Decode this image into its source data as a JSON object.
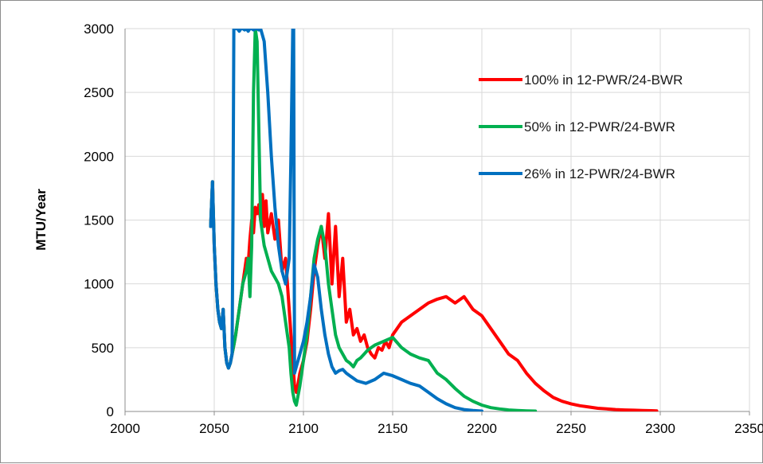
{
  "chart_data": {
    "type": "line",
    "title": "",
    "xlabel": "",
    "ylabel": "MTU/Year",
    "xlim": [
      2000,
      2350
    ],
    "ylim": [
      0,
      3000
    ],
    "x_ticks": [
      2000,
      2050,
      2100,
      2150,
      2200,
      2250,
      2300,
      2350
    ],
    "y_ticks": [
      0,
      500,
      1000,
      1500,
      2000,
      2500,
      3000
    ],
    "grid": true,
    "legend_position": "top-right",
    "series": [
      {
        "name": "100% in 12-PWR/24-BWR",
        "color": "#ff0000",
        "x": [
          2048,
          2049,
          2050,
          2051,
          2052,
          2053,
          2054,
          2055,
          2056,
          2057,
          2058,
          2059,
          2060,
          2061,
          2062,
          2063,
          2064,
          2065,
          2066,
          2067,
          2068,
          2069,
          2070,
          2071,
          2072,
          2073,
          2074,
          2075,
          2076,
          2077,
          2078,
          2079,
          2080,
          2082,
          2084,
          2086,
          2088,
          2090,
          2092,
          2093,
          2094,
          2095,
          2096,
          2097,
          2098,
          2100,
          2102,
          2104,
          2106,
          2108,
          2110,
          2112,
          2114,
          2116,
          2118,
          2120,
          2122,
          2124,
          2126,
          2128,
          2130,
          2132,
          2134,
          2136,
          2138,
          2140,
          2142,
          2144,
          2146,
          2148,
          2150,
          2155,
          2160,
          2165,
          2170,
          2175,
          2180,
          2185,
          2190,
          2195,
          2200,
          2205,
          2210,
          2215,
          2220,
          2225,
          2230,
          2235,
          2240,
          2245,
          2250,
          2255,
          2260,
          2265,
          2270,
          2275,
          2280,
          2285,
          2290,
          2295,
          2298
        ],
        "y": [
          1450,
          1800,
          1300,
          1000,
          800,
          700,
          650,
          800,
          500,
          380,
          340,
          380,
          450,
          520,
          600,
          700,
          800,
          900,
          1000,
          1100,
          1200,
          1150,
          1350,
          1500,
          1400,
          1600,
          1550,
          1620,
          1500,
          1700,
          1450,
          1650,
          1400,
          1550,
          1350,
          1500,
          1100,
          1200,
          800,
          600,
          400,
          200,
          150,
          220,
          300,
          400,
          550,
          800,
          1100,
          1300,
          1450,
          1200,
          1550,
          1000,
          1450,
          900,
          1200,
          700,
          800,
          600,
          650,
          550,
          600,
          500,
          450,
          420,
          500,
          480,
          550,
          500,
          600,
          700,
          750,
          800,
          850,
          880,
          900,
          850,
          900,
          800,
          750,
          650,
          550,
          450,
          400,
          300,
          220,
          160,
          110,
          80,
          60,
          45,
          35,
          25,
          20,
          15,
          12,
          10,
          8,
          6,
          5
        ]
      },
      {
        "name": "50% in 12-PWR/24-BWR",
        "color": "#00b050",
        "x": [
          2048,
          2049,
          2050,
          2051,
          2052,
          2053,
          2054,
          2055,
          2056,
          2057,
          2058,
          2059,
          2060,
          2061,
          2062,
          2063,
          2064,
          2065,
          2066,
          2067,
          2068,
          2069,
          2070,
          2071,
          2072,
          2073,
          2074,
          2076,
          2078,
          2080,
          2082,
          2084,
          2086,
          2088,
          2090,
          2092,
          2093,
          2094,
          2095,
          2096,
          2098,
          2100,
          2102,
          2104,
          2106,
          2108,
          2110,
          2112,
          2114,
          2116,
          2118,
          2120,
          2122,
          2124,
          2126,
          2128,
          2130,
          2132,
          2134,
          2136,
          2138,
          2140,
          2145,
          2150,
          2155,
          2160,
          2165,
          2170,
          2175,
          2180,
          2185,
          2190,
          2195,
          2200,
          2205,
          2210,
          2215,
          2220,
          2225,
          2230
        ],
        "y": [
          1450,
          1800,
          1300,
          1000,
          800,
          700,
          650,
          800,
          500,
          380,
          340,
          380,
          450,
          520,
          600,
          700,
          800,
          900,
          1000,
          1050,
          1100,
          1200,
          900,
          1300,
          2500,
          3000,
          2900,
          1500,
          1300,
          1200,
          1100,
          1050,
          1000,
          900,
          700,
          500,
          300,
          150,
          80,
          50,
          200,
          400,
          600,
          900,
          1200,
          1350,
          1450,
          1300,
          1000,
          800,
          600,
          500,
          450,
          400,
          380,
          350,
          400,
          420,
          450,
          480,
          500,
          520,
          550,
          580,
          500,
          450,
          420,
          400,
          300,
          250,
          180,
          120,
          80,
          50,
          30,
          20,
          12,
          8,
          5,
          3
        ]
      },
      {
        "name": "26% in 12-PWR/24-BWR",
        "color": "#0070c0",
        "x": [
          2048,
          2049,
          2050,
          2051,
          2052,
          2053,
          2054,
          2055,
          2056,
          2057,
          2058,
          2059,
          2060,
          2060.5,
          2061,
          2062,
          2063,
          2064,
          2065,
          2066,
          2067,
          2068,
          2069,
          2070,
          2071,
          2072,
          2073,
          2074,
          2075,
          2076,
          2078,
          2080,
          2082,
          2084,
          2086,
          2088,
          2090,
          2092,
          2093,
          2094,
          2094.5,
          2095,
          2096,
          2098,
          2100,
          2102,
          2104,
          2106,
          2108,
          2110,
          2112,
          2114,
          2116,
          2118,
          2120,
          2122,
          2124,
          2126,
          2128,
          2130,
          2135,
          2140,
          2145,
          2150,
          2155,
          2160,
          2165,
          2170,
          2175,
          2180,
          2185,
          2190,
          2195,
          2200
        ],
        "y": [
          1450,
          1800,
          1300,
          1000,
          800,
          700,
          650,
          800,
          500,
          380,
          340,
          380,
          450,
          1500,
          3000,
          3000,
          3000,
          2980,
          3000,
          3000,
          2990,
          3000,
          2980,
          3000,
          3000,
          2990,
          3000,
          3000,
          2990,
          3000,
          2900,
          2500,
          2000,
          1600,
          1300,
          1100,
          1000,
          1200,
          2000,
          3000,
          3000,
          300,
          350,
          450,
          550,
          700,
          900,
          1150,
          1050,
          800,
          600,
          450,
          350,
          300,
          320,
          330,
          300,
          280,
          260,
          240,
          220,
          250,
          300,
          280,
          250,
          220,
          200,
          150,
          100,
          60,
          30,
          15,
          8,
          3
        ]
      }
    ]
  }
}
